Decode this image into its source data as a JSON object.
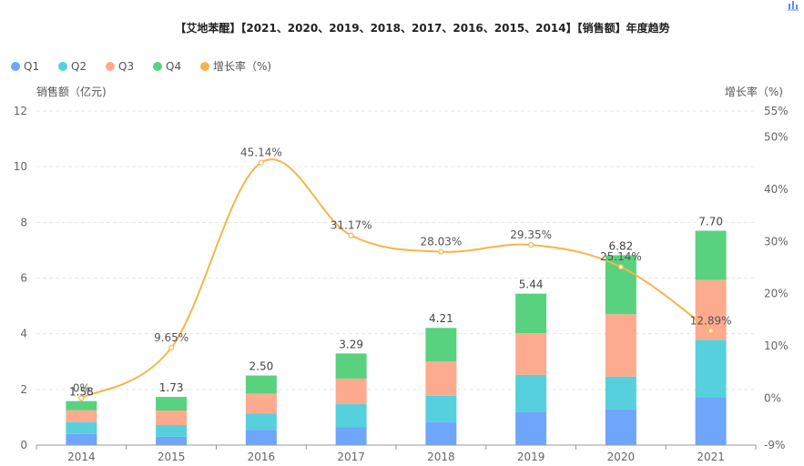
{
  "chart_data": {
    "type": "bar",
    "stacked": true,
    "title": "【艾地苯醌】【2021、2020、2019、2018、2017、2016、2015、2014】【销售额】年度趋势",
    "categories": [
      "2014",
      "2015",
      "2016",
      "2017",
      "2018",
      "2019",
      "2020",
      "2021"
    ],
    "series": [
      {
        "name": "Q1",
        "color": "#6da6fb",
        "values": [
          0.4,
          0.3,
          0.55,
          0.65,
          0.82,
          1.2,
          1.28,
          1.7
        ]
      },
      {
        "name": "Q2",
        "color": "#56d0dd",
        "values": [
          0.43,
          0.42,
          0.58,
          0.82,
          0.95,
          1.32,
          1.18,
          2.08
        ]
      },
      {
        "name": "Q3",
        "color": "#fdab8e",
        "values": [
          0.42,
          0.52,
          0.72,
          0.92,
          1.23,
          1.5,
          2.24,
          2.15
        ]
      },
      {
        "name": "Q4",
        "color": "#58d27e",
        "values": [
          0.33,
          0.49,
          0.65,
          0.9,
          1.21,
          1.42,
          2.12,
          1.77
        ]
      }
    ],
    "totals": [
      "1.58",
      "1.73",
      "2.50",
      "3.29",
      "4.21",
      "5.44",
      "6.82",
      "7.70"
    ],
    "line": {
      "name": "增长率（%)",
      "color": "#f5b54c",
      "values": [
        0,
        9.65,
        45.14,
        31.17,
        28.03,
        29.35,
        25.14,
        12.89
      ],
      "labels": [
        "0%",
        "9.65%",
        "45.14%",
        "31.17%",
        "28.03%",
        "29.35%",
        "25.14%",
        "12.89%"
      ]
    },
    "y_left": {
      "name": "销售额（亿元)",
      "min": 0,
      "max": 12,
      "ticks": [
        "0",
        "2",
        "4",
        "6",
        "8",
        "10",
        "12"
      ]
    },
    "y_right": {
      "name": "增长率（%)",
      "min": -9,
      "max": 55,
      "ticks": [
        "-9%",
        "0%",
        "10%",
        "20%",
        "30%",
        "40%",
        "50%",
        "55%"
      ],
      "tick_values": [
        -9,
        0,
        10,
        20,
        30,
        40,
        50,
        55
      ]
    },
    "legend": {
      "items": [
        {
          "label": "Q1",
          "color": "#6da6fb"
        },
        {
          "label": "Q2",
          "color": "#56d0dd"
        },
        {
          "label": "Q3",
          "color": "#fdab8e"
        },
        {
          "label": "Q4",
          "color": "#58d27e"
        },
        {
          "label": "增长率（%)",
          "color": "#f5b54c"
        }
      ]
    },
    "grid": true
  },
  "toolbar": {
    "icon": "bar-chart-icon"
  }
}
